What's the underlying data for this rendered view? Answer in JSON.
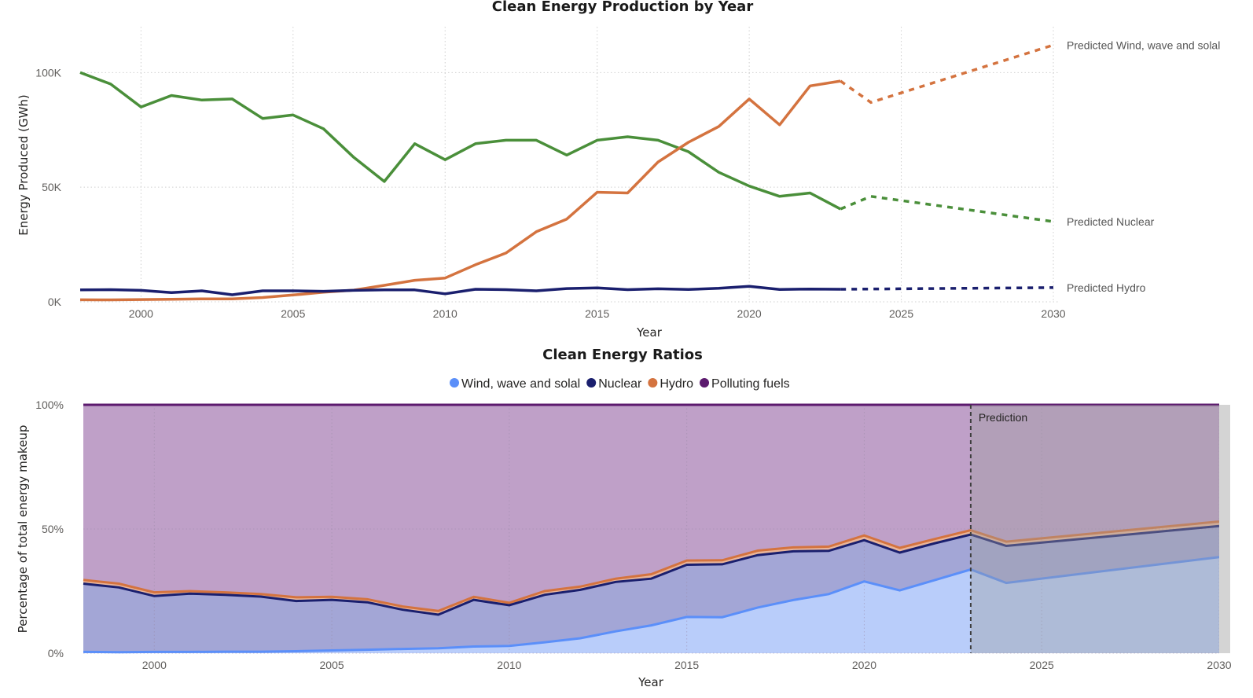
{
  "chart_data": [
    {
      "type": "line",
      "title": "Clean Energy Production by Year",
      "xlabel": "Year",
      "ylabel": "Energy Produced (GWh)",
      "xlim": [
        1998,
        2030
      ],
      "ylim": [
        0,
        120000
      ],
      "x_ticks": [
        2000,
        2005,
        2010,
        2015,
        2020,
        2025,
        2030
      ],
      "y_ticks": [
        {
          "value": 0,
          "label": "0K"
        },
        {
          "value": 50000,
          "label": "50K"
        },
        {
          "value": 100000,
          "label": "100K"
        }
      ],
      "grid": true,
      "series": [
        {
          "key": "nuclear",
          "color": "#4a8f3a",
          "x": [
            1998,
            1999,
            2000,
            2001,
            2002,
            2003,
            2004,
            2005,
            2006,
            2007,
            2008,
            2009,
            2010,
            2011,
            2012,
            2013,
            2014,
            2015,
            2016,
            2017,
            2018,
            2019,
            2020,
            2021,
            2022,
            2023
          ],
          "values": [
            100000,
            95000,
            85000,
            90000,
            88000,
            88500,
            80000,
            81500,
            75500,
            63000,
            52500,
            69000,
            62000,
            69000,
            70500,
            70500,
            64000,
            70500,
            72000,
            70500,
            65500,
            56500,
            50500,
            46000,
            47500,
            40500
          ]
        },
        {
          "key": "wind",
          "color": "#d4733f",
          "x": [
            1998,
            1999,
            2000,
            2001,
            2002,
            2003,
            2004,
            2005,
            2006,
            2007,
            2008,
            2009,
            2010,
            2011,
            2012,
            2013,
            2014,
            2015,
            2016,
            2017,
            2018,
            2019,
            2020,
            2021,
            2022,
            2023
          ],
          "values": [
            900,
            850,
            1000,
            1100,
            1300,
            1300,
            1900,
            3000,
            4200,
            5100,
            7200,
            9400,
            10400,
            16200,
            21300,
            30600,
            36100,
            47800,
            47500,
            61000,
            69600,
            76500,
            88500,
            77200,
            94200,
            96300
          ]
        },
        {
          "key": "hydro",
          "color": "#1a1f6e",
          "x": [
            1998,
            1999,
            2000,
            2001,
            2002,
            2003,
            2004,
            2005,
            2006,
            2007,
            2008,
            2009,
            2010,
            2011,
            2012,
            2013,
            2014,
            2015,
            2016,
            2017,
            2018,
            2019,
            2020,
            2021,
            2022,
            2023
          ],
          "values": [
            5200,
            5300,
            5000,
            4000,
            4800,
            3100,
            4800,
            4800,
            4600,
            5000,
            5200,
            5200,
            3500,
            5500,
            5300,
            4800,
            5800,
            6100,
            5300,
            5700,
            5400,
            5900,
            6800,
            5400,
            5600,
            5500
          ]
        }
      ],
      "predictions": [
        {
          "key": "pred_wind",
          "label": "Predicted Wind, wave and solal",
          "color": "#d4733f",
          "x": [
            2023,
            2024,
            2030
          ],
          "values": [
            96300,
            87000,
            112000
          ]
        },
        {
          "key": "pred_nuclear",
          "label": "Predicted Nuclear",
          "color": "#4a8f3a",
          "x": [
            2023,
            2024,
            2030
          ],
          "values": [
            40500,
            46000,
            35000
          ]
        },
        {
          "key": "pred_hydro",
          "label": "Predicted Hydro",
          "color": "#1a1f6e",
          "x": [
            2023,
            2024,
            2030
          ],
          "values": [
            5500,
            5600,
            6200
          ]
        }
      ]
    },
    {
      "type": "area",
      "title": "Clean Energy Ratios",
      "xlabel": "Year",
      "ylabel": "Percentage of total energy makeup",
      "xlim": [
        1998,
        2030
      ],
      "ylim": [
        0,
        100
      ],
      "x_ticks": [
        2000,
        2005,
        2010,
        2015,
        2020,
        2025,
        2030
      ],
      "y_ticks": [
        {
          "value": 0,
          "label": "0%"
        },
        {
          "value": 50,
          "label": "50%"
        },
        {
          "value": 100,
          "label": "100%"
        }
      ],
      "grid": true,
      "legend_position": "top-center",
      "legend": [
        {
          "label": "Wind, wave and solal",
          "color": "#5b8ff9"
        },
        {
          "label": "Nuclear",
          "color": "#1a1f6e"
        },
        {
          "label": "Hydro",
          "color": "#d4733f"
        },
        {
          "label": "Polluting fuels",
          "color": "#5c1a6e"
        }
      ],
      "x": [
        1998,
        1999,
        2000,
        2001,
        2002,
        2003,
        2004,
        2005,
        2006,
        2007,
        2008,
        2009,
        2010,
        2011,
        2012,
        2013,
        2014,
        2015,
        2016,
        2017,
        2018,
        2019,
        2020,
        2021,
        2022,
        2023,
        2024,
        2030
      ],
      "wind_cumulative": [
        0.5,
        0.4,
        0.5,
        0.5,
        0.6,
        0.6,
        0.8,
        1.1,
        1.4,
        1.7,
        2.0,
        2.7,
        2.9,
        4.4,
        6.0,
        8.8,
        11.2,
        14.6,
        14.5,
        18.4,
        21.4,
        23.8,
        28.9,
        25.3,
        29.5,
        33.7,
        28.3,
        38.7
      ],
      "nuclear_cumulative": [
        28,
        26.5,
        23,
        24,
        23.5,
        22.8,
        21,
        21.5,
        20.5,
        17.5,
        15.5,
        21.5,
        19.3,
        23.5,
        25.5,
        28.7,
        30,
        35.6,
        35.8,
        39.5,
        41,
        41.2,
        45.5,
        40.5,
        44.3,
        47.8,
        43.2,
        51.2
      ],
      "hydro_cumulative": [
        29.5,
        28,
        24.5,
        25,
        24.5,
        23.8,
        22.5,
        22.7,
        21.7,
        18.8,
        17,
        22.7,
        20.3,
        25,
        26.8,
        30,
        31.8,
        37.3,
        37.4,
        41.3,
        42.6,
        42.9,
        47.4,
        42.4,
        46,
        49.5,
        44.9,
        53
      ],
      "polluting_cumulative": 100,
      "prediction_start": 2023,
      "prediction_label": "Prediction"
    }
  ]
}
